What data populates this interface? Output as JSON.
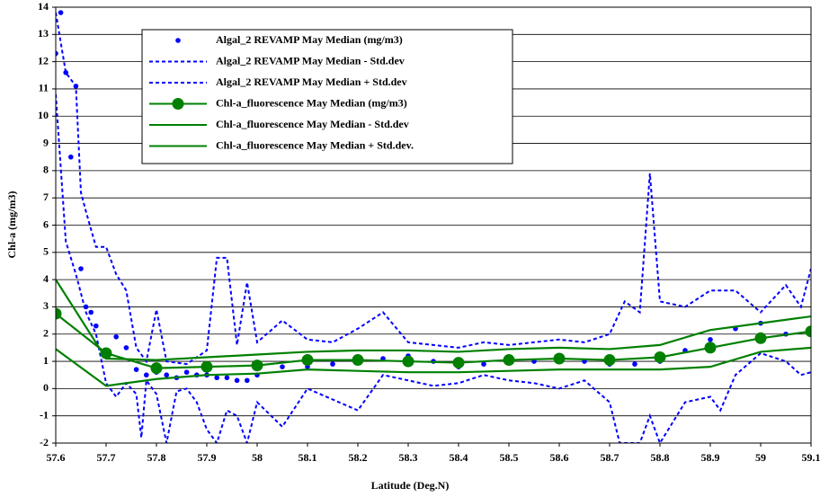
{
  "chart_data": {
    "type": "line",
    "xlabel": "Latitude (Deg.N)",
    "ylabel": "Chl-a (mg/m3)",
    "xlim": [
      57.6,
      59.1
    ],
    "ylim": [
      -2,
      14
    ],
    "xticks": [
      57.6,
      57.7,
      57.8,
      57.9,
      58,
      58.1,
      58.2,
      58.3,
      58.4,
      58.5,
      58.6,
      58.7,
      58.8,
      58.9,
      59,
      59.1
    ],
    "yticks": [
      -2,
      -1,
      0,
      1,
      2,
      3,
      4,
      5,
      6,
      7,
      8,
      9,
      10,
      11,
      12,
      13,
      14
    ],
    "grid": true,
    "legend": "upper left",
    "series": [
      {
        "name": "Algal_2 REVAMP May Median (mg/m3)",
        "color": "#0000ff",
        "line": false,
        "dash": false,
        "marker": "dot",
        "x": [
          57.6,
          57.61,
          57.62,
          57.63,
          57.64,
          57.65,
          57.66,
          57.67,
          57.68,
          57.7,
          57.72,
          57.74,
          57.76,
          57.78,
          57.8,
          57.82,
          57.84,
          57.86,
          57.88,
          57.9,
          57.92,
          57.94,
          57.96,
          57.98,
          58.0,
          58.05,
          58.1,
          58.15,
          58.2,
          58.25,
          58.3,
          58.35,
          58.4,
          58.45,
          58.5,
          58.55,
          58.6,
          58.65,
          58.7,
          58.75,
          58.8,
          58.85,
          58.9,
          58.95,
          59.0,
          59.05,
          59.1
        ],
        "values": [
          12.3,
          13.8,
          11.6,
          8.5,
          11.1,
          4.4,
          3.0,
          2.8,
          2.3,
          1.2,
          1.9,
          1.5,
          0.7,
          0.5,
          0.6,
          0.5,
          0.4,
          0.6,
          0.5,
          0.5,
          0.4,
          0.4,
          0.3,
          0.3,
          0.5,
          0.8,
          0.8,
          0.9,
          1.0,
          1.1,
          1.2,
          1.0,
          0.8,
          0.9,
          1.0,
          1.0,
          1.0,
          1.0,
          0.9,
          0.9,
          1.0,
          1.4,
          1.8,
          2.2,
          2.4,
          2.0,
          2.2
        ]
      },
      {
        "name": "Algal_2 REVAMP May Median - Std.dev",
        "color": "#0000ff",
        "line": true,
        "dash": true,
        "marker": "none",
        "x": [
          57.6,
          57.62,
          57.64,
          57.66,
          57.68,
          57.7,
          57.72,
          57.74,
          57.76,
          57.77,
          57.78,
          57.8,
          57.82,
          57.84,
          57.86,
          57.88,
          57.9,
          57.92,
          57.94,
          57.96,
          57.98,
          58.0,
          58.05,
          58.1,
          58.15,
          58.2,
          58.25,
          58.3,
          58.35,
          58.4,
          58.45,
          58.5,
          58.55,
          58.6,
          58.65,
          58.7,
          58.72,
          58.76,
          58.78,
          58.8,
          58.85,
          58.9,
          58.92,
          58.95,
          59.0,
          59.05,
          59.08,
          59.1
        ],
        "values": [
          10.8,
          5.4,
          4.2,
          2.8,
          2.0,
          0.2,
          -0.3,
          0.2,
          -0.2,
          -1.8,
          0.3,
          -0.2,
          -2.0,
          -0.1,
          0.0,
          -0.5,
          -1.5,
          -2.0,
          -0.8,
          -1.0,
          -2.0,
          -0.5,
          -1.4,
          0.0,
          -0.4,
          -0.8,
          0.5,
          0.3,
          0.1,
          0.2,
          0.5,
          0.3,
          0.2,
          0.0,
          0.3,
          -0.5,
          -2.0,
          -2.0,
          -1.0,
          -2.0,
          -0.5,
          -0.3,
          -0.8,
          0.5,
          1.3,
          1.0,
          0.5,
          0.6
        ]
      },
      {
        "name": "Algal_2 REVAMP May Median + Std.dev",
        "color": "#0000ff",
        "line": true,
        "dash": true,
        "marker": "none",
        "x": [
          57.6,
          57.62,
          57.64,
          57.65,
          57.66,
          57.68,
          57.7,
          57.72,
          57.74,
          57.76,
          57.78,
          57.8,
          57.82,
          57.86,
          57.9,
          57.92,
          57.94,
          57.96,
          57.98,
          58.0,
          58.05,
          58.1,
          58.15,
          58.2,
          58.25,
          58.3,
          58.35,
          58.4,
          58.45,
          58.5,
          58.55,
          58.6,
          58.65,
          58.7,
          58.73,
          58.76,
          58.78,
          58.8,
          58.85,
          58.9,
          58.95,
          59.0,
          59.05,
          59.08,
          59.1
        ],
        "values": [
          13.8,
          11.6,
          11.1,
          7.2,
          6.5,
          5.2,
          5.2,
          4.2,
          3.6,
          1.5,
          1.0,
          2.9,
          1.0,
          0.9,
          1.4,
          4.8,
          4.8,
          1.6,
          3.9,
          1.7,
          2.5,
          1.8,
          1.7,
          2.2,
          2.8,
          1.7,
          1.6,
          1.5,
          1.7,
          1.6,
          1.7,
          1.8,
          1.7,
          2.0,
          3.2,
          2.8,
          7.9,
          3.2,
          3.0,
          3.6,
          3.6,
          2.8,
          3.8,
          3.0,
          4.4
        ]
      },
      {
        "name": "Chl-a_fluorescence May Median (mg/m3)",
        "color": "#008000",
        "line": true,
        "dash": false,
        "marker": "circle",
        "x": [
          57.6,
          57.7,
          57.8,
          57.9,
          58.0,
          58.1,
          58.2,
          58.3,
          58.4,
          58.5,
          58.6,
          58.7,
          58.8,
          58.9,
          59.0,
          59.1
        ],
        "values": [
          2.75,
          1.3,
          0.75,
          0.8,
          0.85,
          1.05,
          1.05,
          1.0,
          0.95,
          1.05,
          1.1,
          1.05,
          1.15,
          1.5,
          1.85,
          2.1
        ]
      },
      {
        "name": "Chl-a_fluorescence May Median - Std.dev",
        "color": "#008000",
        "line": true,
        "dash": false,
        "marker": "none",
        "x": [
          57.6,
          57.7,
          57.8,
          57.9,
          58.0,
          58.1,
          58.2,
          58.3,
          58.4,
          58.5,
          58.6,
          58.7,
          58.8,
          58.9,
          59.0,
          59.1
        ],
        "values": [
          1.45,
          0.1,
          0.35,
          0.5,
          0.55,
          0.7,
          0.65,
          0.6,
          0.6,
          0.65,
          0.7,
          0.7,
          0.7,
          0.8,
          1.35,
          1.5
        ]
      },
      {
        "name": "Chl-a_fluorescence May Median + Std.dev.",
        "color": "#008000",
        "line": true,
        "dash": false,
        "marker": "none",
        "x": [
          57.6,
          57.7,
          57.8,
          57.9,
          58.0,
          58.1,
          58.2,
          58.3,
          58.4,
          58.5,
          58.6,
          58.7,
          58.8,
          58.9,
          59.0,
          59.1
        ],
        "values": [
          4.0,
          1.1,
          1.05,
          1.15,
          1.25,
          1.35,
          1.4,
          1.4,
          1.35,
          1.45,
          1.5,
          1.45,
          1.6,
          2.15,
          2.4,
          2.65
        ]
      }
    ]
  }
}
